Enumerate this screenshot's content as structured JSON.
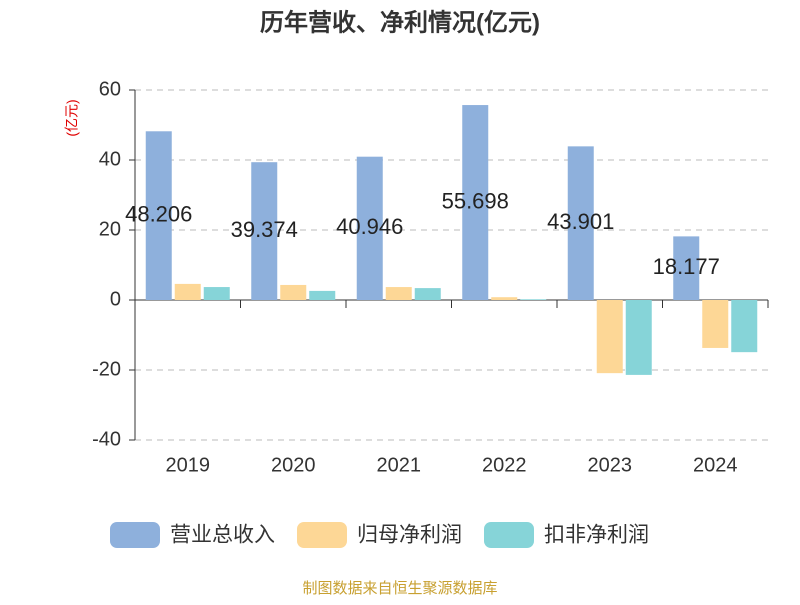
{
  "chart_data": {
    "type": "bar",
    "title": "历年营收、净利情况(亿元)",
    "y_label": "(亿元)",
    "source": "制图数据来自恒生聚源数据库",
    "categories": [
      "2019",
      "2020",
      "2021",
      "2022",
      "2023",
      "2024"
    ],
    "series": [
      {
        "name": "营业总收入",
        "color": "#8eb0dc",
        "values": [
          48.206,
          39.374,
          40.946,
          55.698,
          43.901,
          18.177
        ],
        "show_labels": true
      },
      {
        "name": "归母净利润",
        "color": "#fdd796",
        "values": [
          4.6,
          4.3,
          3.7,
          0.8,
          -20.9,
          -13.7
        ],
        "show_labels": false
      },
      {
        "name": "扣非净利润",
        "color": "#86d4d8",
        "values": [
          3.7,
          2.6,
          3.4,
          0.2,
          -21.4,
          -14.9
        ],
        "show_labels": false
      }
    ],
    "ylim": [
      -40,
      60
    ],
    "yticks": [
      -40,
      -20,
      0,
      20,
      40,
      60
    ],
    "grid": true
  }
}
